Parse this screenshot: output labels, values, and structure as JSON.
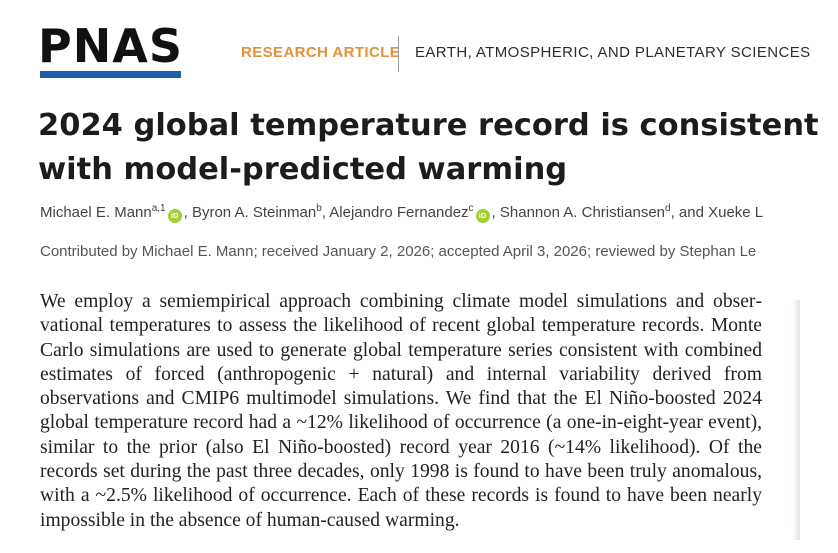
{
  "header": {
    "journal": "PNAS",
    "article_type": "RESEARCH ARTICLE",
    "section": "EARTH, ATMOSPHERIC, AND PLANETARY SCIENCES"
  },
  "colors": {
    "logo_bar": "#1f5fa8",
    "article_type": "#e0923a",
    "orcid": "#a6ce39"
  },
  "title": {
    "line1": "2024 global temperature record is consistent",
    "line2": "with model-predicted warming"
  },
  "authors": [
    {
      "name": "Michael E. Mann",
      "affil": "a,1",
      "orcid": true
    },
    {
      "name": "Byron A. Steinman",
      "affil": "b",
      "orcid": false
    },
    {
      "name": "Alejandro Fernandez",
      "affil": "c",
      "orcid": true
    },
    {
      "name": "Shannon A. Christiansen",
      "affil": "d",
      "orcid": false
    },
    {
      "name": "Xueke L",
      "affil": "",
      "orcid": false
    }
  ],
  "orcid_label": "iD",
  "contributed": "Contributed by Michael E. Mann; received January 2, 2026; accepted April 3, 2026; reviewed by Stephan Le",
  "abstract": "We employ a semiempirical approach combining climate model simulations and obser­vational temperatures to assess the likelihood of recent global temperature records. Monte Carlo simulations are used to generate global temperature series consistent with combined estimates of forced (anthropogenic + natural) and internal variability derived from observations and CMIP6 multimodel simulations. We find that the El Niño-boosted 2024 global temperature record had a ~12% likelihood of occurrence (a one-in-eight-year event), similar to the prior (also El Niño-boosted) record year 2016 (~14% likelihood). Of the records set during the past three decades, only 1998 is found to have been truly anomalous, with a ~2.5% likelihood of occurrence. Each of these records is found to have been nearly impossible in the absence of human-caused warming."
}
